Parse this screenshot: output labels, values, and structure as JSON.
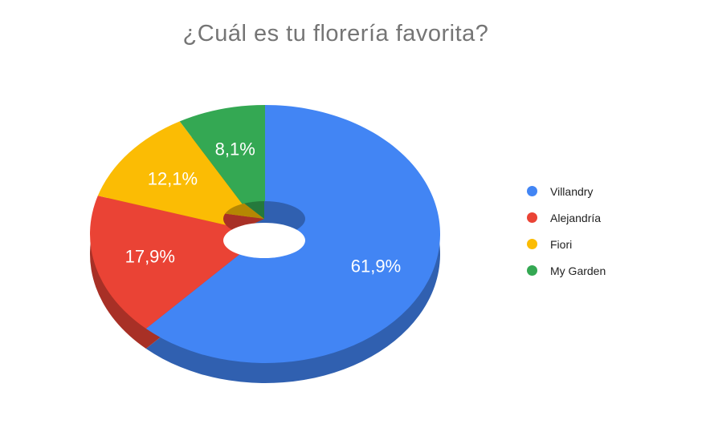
{
  "chart_data": {
    "type": "pie",
    "variant": "3d-donut",
    "title": "¿Cuál es tu florería favorita?",
    "legend_position": "right",
    "total_percent": 100,
    "series": [
      {
        "name": "Villandry",
        "value": 61.9,
        "label": "61,9%",
        "color": "#4285F4"
      },
      {
        "name": "Alejandría",
        "value": 17.9,
        "label": "17,9%",
        "color": "#EA4335"
      },
      {
        "name": "Fiori",
        "value": 12.1,
        "label": "12,1%",
        "color": "#FBBC04"
      },
      {
        "name": "My Garden",
        "value": 8.1,
        "label": "8,1%",
        "color": "#34A853"
      }
    ],
    "colors": {
      "title_text": "#757575",
      "slice_label_text": "#ffffff",
      "legend_text": "#212121",
      "background": "#ffffff"
    }
  }
}
